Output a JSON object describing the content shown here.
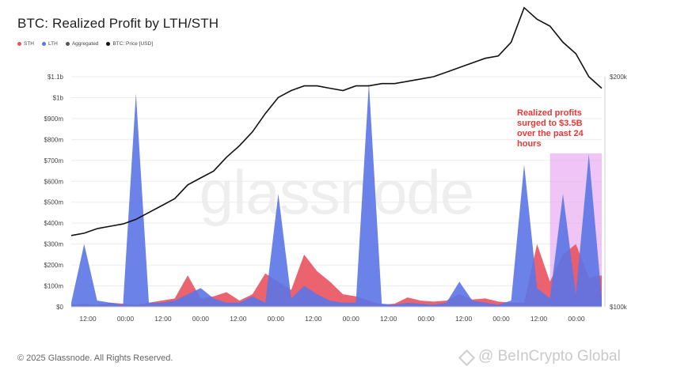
{
  "header": {
    "title": "BTC: Realized Profit by LTH/STH"
  },
  "legend": [
    {
      "label": "STH",
      "color": "#e8525e"
    },
    {
      "label": "LTH",
      "color": "#5b74e6"
    },
    {
      "label": "Aggregated",
      "color": "#555555"
    },
    {
      "label": "BTC: Price [USD]",
      "color": "#111111"
    }
  ],
  "footer": {
    "copyright": "© 2025 Glassnode. All Rights Reserved."
  },
  "watermark": {
    "text": "glassnode"
  },
  "source_mark": {
    "text": "@ BeInCrypto Global"
  },
  "chart_data": {
    "type": "area",
    "title": "BTC: Realized Profit by LTH/STH",
    "y_left": {
      "ticks": [
        "$0",
        "$100m",
        "$200m",
        "$300m",
        "$400m",
        "$500m",
        "$600m",
        "$700m",
        "$800m",
        "$900m",
        "$1b",
        "$1.1b"
      ],
      "range": [
        0,
        1100
      ]
    },
    "y_right": {
      "ticks": [
        "$100k",
        "$200k"
      ]
    },
    "x_ticks": [
      "12:00",
      "00:00",
      "12:00",
      "00:00",
      "12:00",
      "00:00",
      "12:00",
      "00:00",
      "12:00",
      "00:00",
      "12:00",
      "00:00",
      "12:00",
      "00:00"
    ],
    "x_hours": [
      0,
      4,
      8,
      12,
      16,
      20,
      24,
      28,
      32,
      36,
      40,
      44,
      48,
      52,
      56,
      60,
      64,
      68,
      72,
      76,
      80,
      84,
      88,
      92,
      96,
      100,
      104,
      108,
      112,
      116,
      120,
      124,
      128,
      132,
      136,
      140,
      144,
      148,
      152,
      156,
      160,
      164
    ],
    "series": [
      {
        "name": "STH",
        "color": "#e8525e",
        "values": [
          10,
          15,
          10,
          20,
          15,
          10,
          20,
          30,
          40,
          150,
          40,
          50,
          70,
          30,
          60,
          160,
          120,
          80,
          250,
          170,
          120,
          60,
          50,
          30,
          10,
          15,
          45,
          30,
          25,
          30,
          60,
          35,
          40,
          25,
          20,
          20,
          300,
          120,
          250,
          300,
          140,
          150
        ]
      },
      {
        "name": "LTH",
        "color": "#5b74e6",
        "values": [
          20,
          300,
          30,
          20,
          10,
          1020,
          20,
          20,
          30,
          60,
          90,
          40,
          20,
          20,
          50,
          20,
          540,
          40,
          100,
          60,
          30,
          20,
          20,
          1070,
          15,
          10,
          20,
          15,
          10,
          20,
          120,
          30,
          20,
          10,
          30,
          680,
          90,
          40,
          540,
          60,
          730,
          40
        ]
      },
      {
        "name": "BTC: Price [USD]",
        "color": "#111111",
        "values": [
          131,
          132,
          134,
          135,
          136,
          138,
          141,
          144,
          147,
          153,
          156,
          159,
          165,
          170,
          176,
          184,
          191,
          194,
          196,
          196,
          195,
          194,
          196,
          196,
          197,
          197,
          198,
          199,
          200,
          202,
          204,
          206,
          208,
          209,
          215,
          230,
          225,
          222,
          215,
          210,
          200,
          195
        ]
      }
    ],
    "highlight": {
      "from_hour": 148,
      "to_hour": 164
    },
    "annotation": "Realized profits surged to $3.5B over the past 24 hours"
  }
}
